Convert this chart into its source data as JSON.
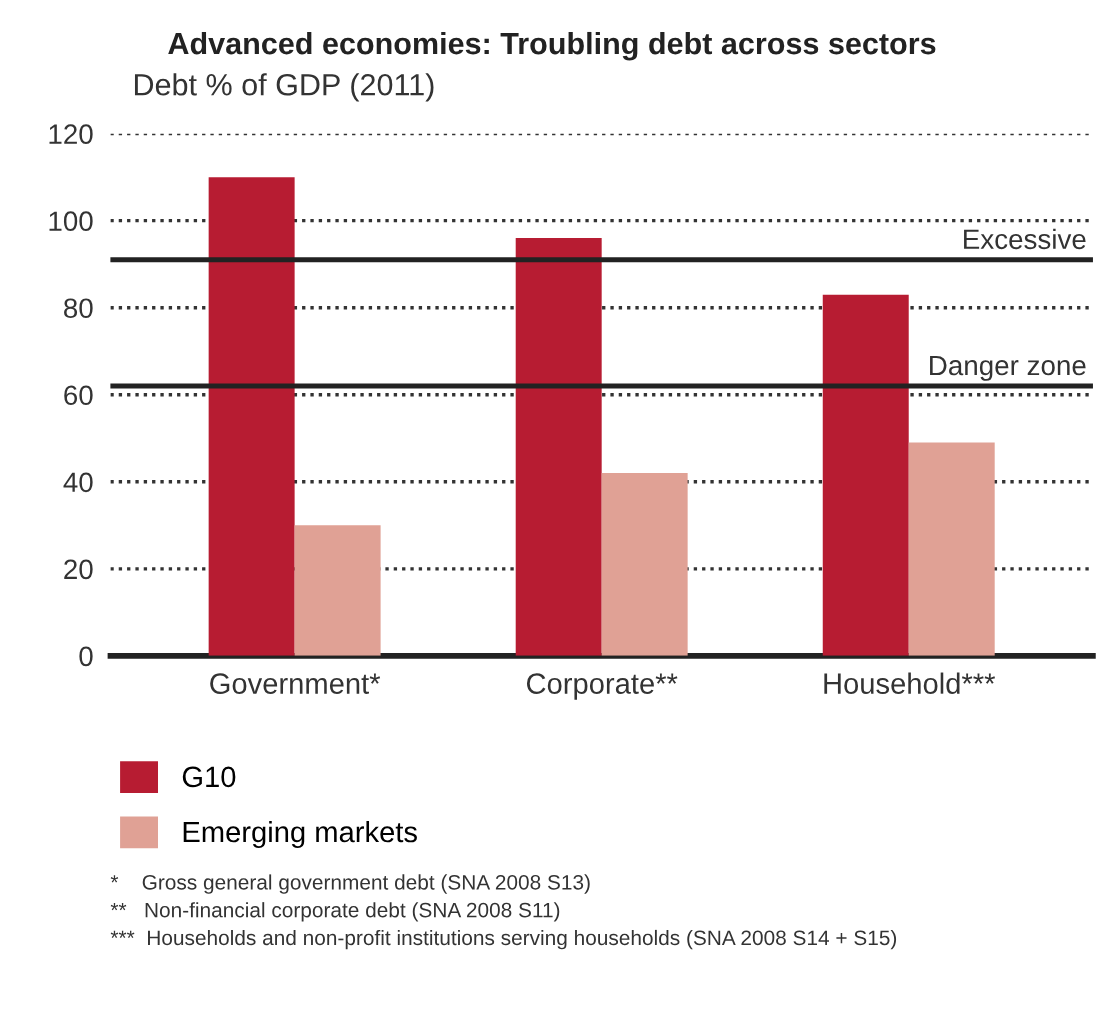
{
  "chart_data": {
    "type": "bar",
    "title": "Advanced economies: Troubling debt across sectors",
    "ylabel": "Debt % of GDP (2011)",
    "categories": [
      "Government*",
      "Corporate**",
      "Household***"
    ],
    "series": [
      {
        "name": "G10",
        "color": "#b71c32",
        "values": [
          110,
          96,
          83
        ]
      },
      {
        "name": "Emerging markets",
        "color": "#e0a195",
        "values": [
          30,
          42,
          49
        ]
      }
    ],
    "ylim": [
      0,
      120
    ],
    "yticks": [
      0,
      20,
      40,
      60,
      80,
      100,
      120
    ],
    "grid": "y",
    "legend": "bottom",
    "ref_lines": [
      {
        "axis": "y",
        "value": 91,
        "label": "Excessive",
        "color": "#222222"
      },
      {
        "axis": "y",
        "value": 62,
        "label": "Danger zone",
        "color": "#222222"
      }
    ],
    "annotations": [
      "*    Gross general government debt (SNA 2008 S13)",
      "**   Non-financial corporate debt (SNA 2008 S11)",
      "***  Households and non-profit institutions serving households (SNA 2008 S14 + S15)"
    ]
  }
}
